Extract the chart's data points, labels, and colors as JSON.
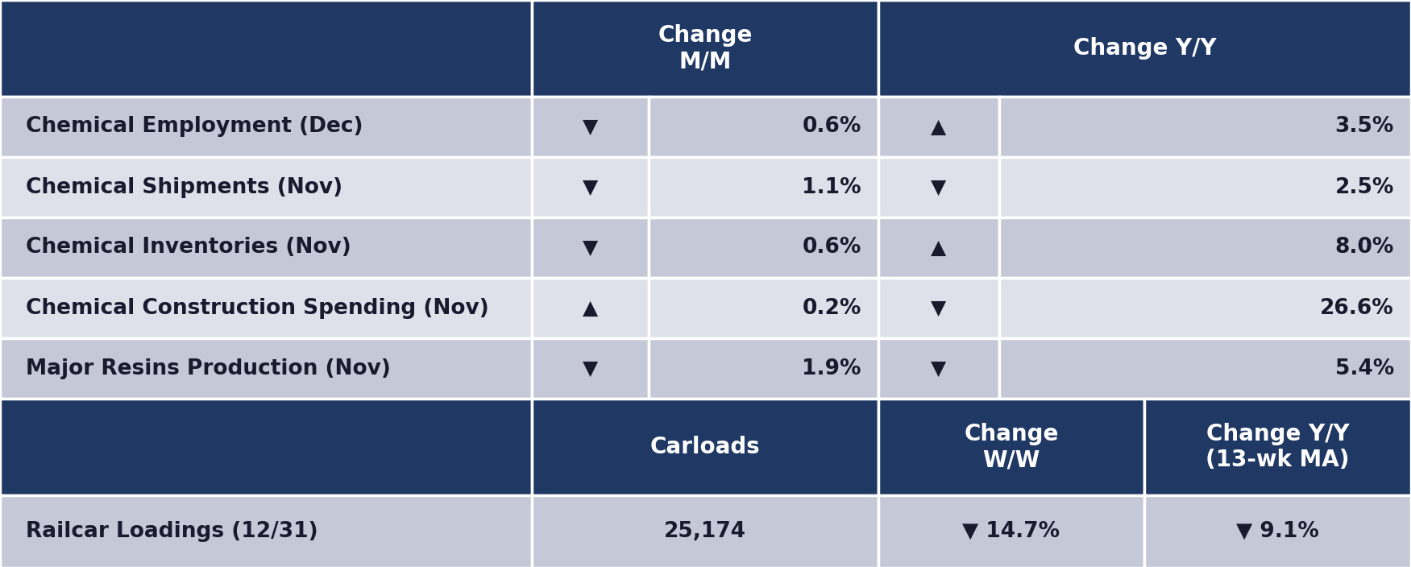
{
  "header_bg": "#1f3864",
  "header_text": "#ffffff",
  "row_bg_dark": "#c5c8d6",
  "row_bg_light": "#dfe1ea",
  "data_text": "#1a1a2e",
  "section2_bg": "#1f3864",
  "section2_text": "#ffffff",
  "last_row_bg": "#c5c8d6",
  "border_color": "#ffffff",
  "rows_top": [
    [
      "Chemical Employment (Dec)",
      "▼",
      "0.6%",
      "▲",
      "3.5%"
    ],
    [
      "Chemical Shipments (Nov)",
      "▼",
      "1.1%",
      "▼",
      "2.5%"
    ],
    [
      "Chemical Inventories (Nov)",
      "▼",
      "0.6%",
      "▲",
      "8.0%"
    ],
    [
      "Chemical Construction Spending (Nov)",
      "▲",
      "0.2%",
      "▼",
      "26.6%"
    ],
    [
      "Major Resins Production (Nov)",
      "▼",
      "1.9%",
      "▼",
      "5.4%"
    ]
  ],
  "rows_bottom": [
    [
      "Railcar Loadings (12/31)",
      "25,174",
      "▼ 14.7%",
      "▼ 9.1%"
    ]
  ],
  "figsize": [
    17.51,
    7.04
  ],
  "dpi": 100
}
